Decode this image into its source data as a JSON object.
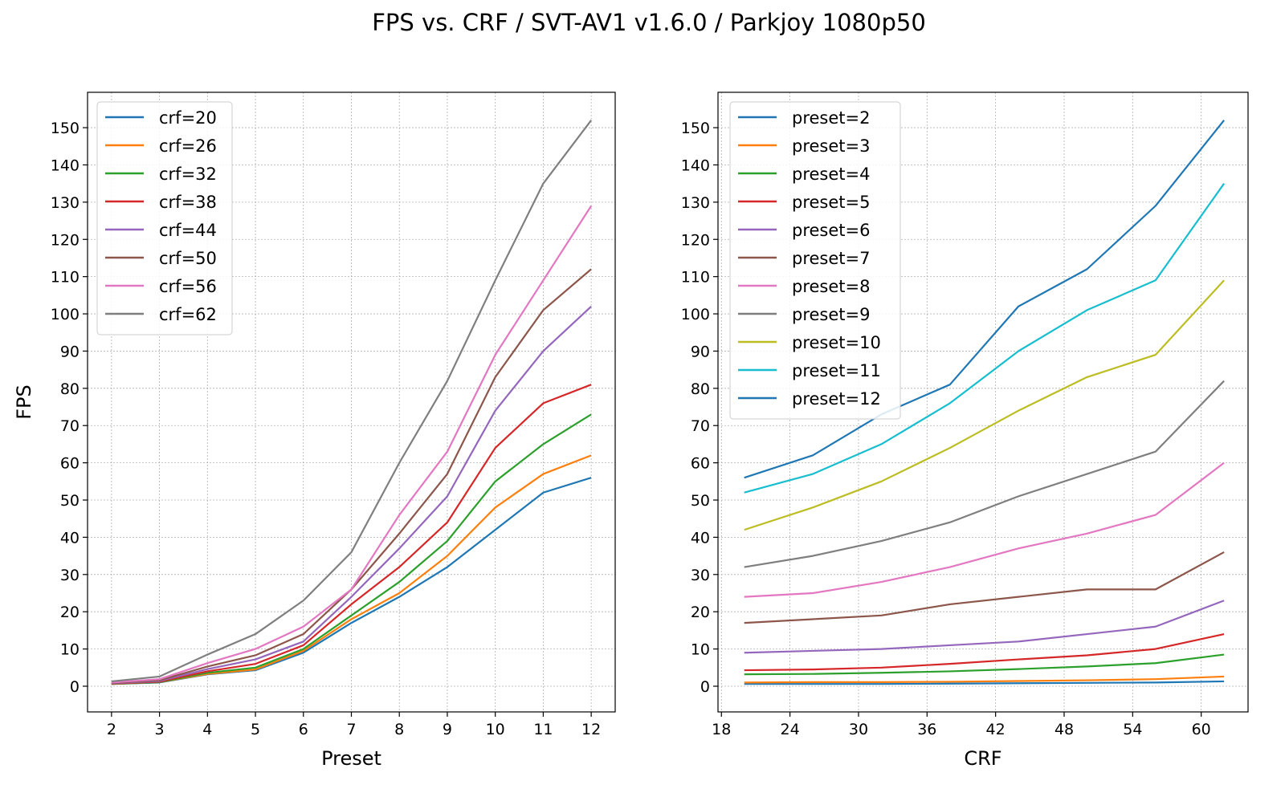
{
  "title": "FPS vs. CRF / SVT-AV1 v1.6.0 / Parkjoy 1080p50",
  "colors": [
    "#1f77b4",
    "#ff7f0e",
    "#2ca02c",
    "#d62728",
    "#9467bd",
    "#8c564b",
    "#e377c2",
    "#7f7f7f",
    "#bcbd22",
    "#17becf"
  ],
  "chart_data": [
    {
      "type": "line",
      "xlabel": "Preset",
      "ylabel": "FPS",
      "xlim": [
        1.5,
        12.5
      ],
      "ylim": [
        -6.9,
        159.5
      ],
      "xticks": [
        2,
        3,
        4,
        5,
        6,
        7,
        8,
        9,
        10,
        11,
        12
      ],
      "yticks": [
        0,
        10,
        20,
        30,
        40,
        50,
        60,
        70,
        80,
        90,
        100,
        110,
        120,
        130,
        140,
        150
      ],
      "grid": true,
      "legend": "top-left",
      "x": [
        2,
        3,
        4,
        5,
        6,
        7,
        8,
        9,
        10,
        11,
        12
      ],
      "series": [
        {
          "name": "crf=20",
          "values": [
            0.6,
            1.0,
            3.2,
            4.3,
            9,
            17,
            24,
            32,
            42,
            52,
            56
          ]
        },
        {
          "name": "crf=26",
          "values": [
            0.6,
            1.1,
            3.3,
            4.5,
            9.5,
            18,
            25,
            35,
            48,
            57,
            62
          ]
        },
        {
          "name": "crf=32",
          "values": [
            0.6,
            1.1,
            3.6,
            5,
            10,
            19,
            28,
            39,
            55,
            65,
            73
          ]
        },
        {
          "name": "crf=38",
          "values": [
            0.7,
            1.2,
            4,
            6,
            11,
            22,
            32,
            44,
            64,
            76,
            81
          ]
        },
        {
          "name": "crf=44",
          "values": [
            0.8,
            1.4,
            4.6,
            7.2,
            12,
            24,
            37,
            51,
            74,
            90,
            102
          ]
        },
        {
          "name": "crf=50",
          "values": [
            0.9,
            1.6,
            5.3,
            8.3,
            14,
            26,
            41,
            57,
            83,
            101,
            112
          ]
        },
        {
          "name": "crf=56",
          "values": [
            1.0,
            1.9,
            6.2,
            10,
            16,
            26,
            46,
            63,
            89,
            109,
            129
          ]
        },
        {
          "name": "crf=62",
          "values": [
            1.3,
            2.6,
            8.5,
            14,
            23,
            36,
            60,
            82,
            109,
            135,
            152
          ]
        }
      ]
    },
    {
      "type": "line",
      "xlabel": "CRF",
      "ylabel": "",
      "xlim": [
        17.7,
        64.1
      ],
      "ylim": [
        -6.9,
        159.5
      ],
      "xticks": [
        18,
        24,
        30,
        36,
        42,
        48,
        54,
        60
      ],
      "yticks": [
        0,
        10,
        20,
        30,
        40,
        50,
        60,
        70,
        80,
        90,
        100,
        110,
        120,
        130,
        140,
        150
      ],
      "grid": true,
      "legend": "top-left",
      "x": [
        20,
        26,
        32,
        38,
        44,
        50,
        56,
        62
      ],
      "series": [
        {
          "name": "preset=2",
          "values": [
            0.6,
            0.6,
            0.6,
            0.7,
            0.8,
            0.9,
            1.0,
            1.3
          ]
        },
        {
          "name": "preset=3",
          "values": [
            1.0,
            1.1,
            1.1,
            1.2,
            1.4,
            1.6,
            1.9,
            2.6
          ]
        },
        {
          "name": "preset=4",
          "values": [
            3.2,
            3.3,
            3.6,
            4,
            4.6,
            5.3,
            6.2,
            8.5
          ]
        },
        {
          "name": "preset=5",
          "values": [
            4.3,
            4.5,
            5,
            6,
            7.2,
            8.3,
            10,
            14
          ]
        },
        {
          "name": "preset=6",
          "values": [
            9,
            9.5,
            10,
            11,
            12,
            14,
            16,
            23
          ]
        },
        {
          "name": "preset=7",
          "values": [
            17,
            18,
            19,
            22,
            24,
            26,
            26,
            36
          ]
        },
        {
          "name": "preset=8",
          "values": [
            24,
            25,
            28,
            32,
            37,
            41,
            46,
            60
          ]
        },
        {
          "name": "preset=9",
          "values": [
            32,
            35,
            39,
            44,
            51,
            57,
            63,
            82
          ]
        },
        {
          "name": "preset=10",
          "values": [
            42,
            48,
            55,
            64,
            74,
            83,
            89,
            109
          ]
        },
        {
          "name": "preset=11",
          "values": [
            52,
            57,
            65,
            76,
            90,
            101,
            109,
            135
          ]
        },
        {
          "name": "preset=12",
          "values": [
            56,
            62,
            73,
            81,
            102,
            112,
            129,
            152
          ]
        }
      ]
    }
  ]
}
